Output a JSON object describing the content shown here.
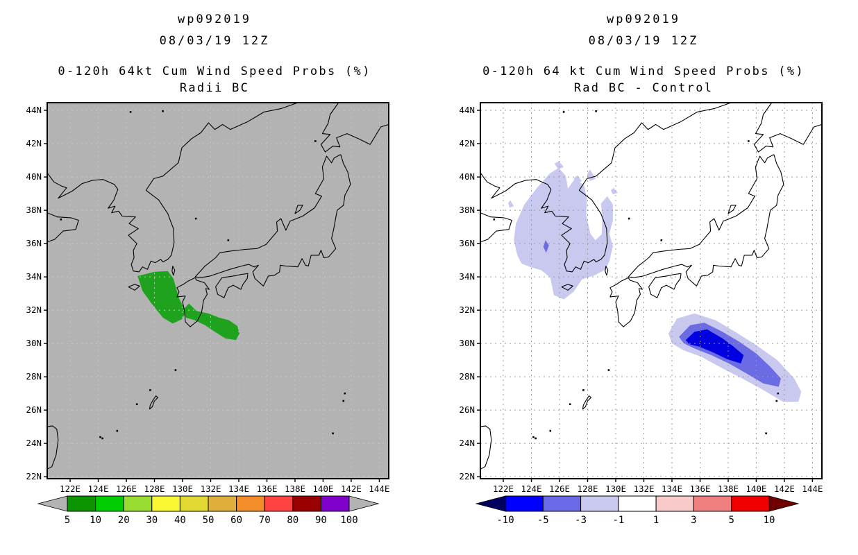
{
  "page": {
    "background": "#ffffff"
  },
  "chart_data": [
    {
      "type": "filled-contour-map",
      "title": "wp092019",
      "datetime": "08/03/19 12Z",
      "subtitle": "0-120h 64kt Cum Wind Speed Probs (%)",
      "variant": "Radii BC",
      "map_background": "#b3b3b3",
      "grid_color": "#c6c6c6",
      "coast_color": "#000000",
      "lon_range": [
        120.37,
        144.67
      ],
      "lat_range": [
        21.88,
        44.46
      ],
      "x_tick_labels": [
        "122E",
        "124E",
        "126E",
        "128E",
        "130E",
        "132E",
        "134E",
        "136E",
        "138E",
        "140E",
        "142E",
        "144E"
      ],
      "x_tick_values": [
        122,
        124,
        126,
        128,
        130,
        132,
        134,
        136,
        138,
        140,
        142,
        144
      ],
      "y_tick_labels": [
        "44N",
        "42N",
        "40N",
        "38N",
        "36N",
        "34N",
        "32N",
        "30N",
        "28N",
        "26N",
        "24N",
        "22N"
      ],
      "y_tick_values": [
        44,
        42,
        40,
        38,
        36,
        34,
        32,
        30,
        28,
        26,
        24,
        22
      ],
      "regions": [
        {
          "name": "prob-west-of-kyushu",
          "level": "5-10%",
          "color": "#1fa31f",
          "polygon": [
            [
              126.8,
              34.05
            ],
            [
              128.0,
              34.3
            ],
            [
              128.95,
              34.35
            ],
            [
              129.35,
              33.9
            ],
            [
              129.75,
              32.7
            ],
            [
              130.25,
              31.9
            ],
            [
              129.95,
              31.45
            ],
            [
              129.3,
              31.2
            ],
            [
              128.6,
              31.55
            ],
            [
              127.8,
              32.4
            ],
            [
              127.15,
              33.15
            ]
          ]
        },
        {
          "name": "prob-south-of-shikoku",
          "level": "5-10%",
          "color": "#1fa31f",
          "polygon": [
            [
              129.95,
              31.95
            ],
            [
              130.45,
              32.4
            ],
            [
              131.0,
              31.95
            ],
            [
              131.85,
              31.8
            ],
            [
              132.6,
              31.55
            ],
            [
              133.3,
              31.4
            ],
            [
              133.9,
              31.05
            ],
            [
              134.05,
              30.6
            ],
            [
              133.8,
              30.2
            ],
            [
              133.05,
              30.3
            ],
            [
              132.3,
              30.7
            ],
            [
              131.6,
              31.1
            ],
            [
              130.85,
              31.4
            ],
            [
              130.25,
              31.55
            ]
          ]
        }
      ],
      "colorbar": {
        "labels": [
          "5",
          "10",
          "20",
          "30",
          "40",
          "50",
          "60",
          "70",
          "80",
          "90",
          "100"
        ],
        "colors": [
          "#0b9400",
          "#00cd00",
          "#9add32",
          "#f8f832",
          "#e3d935",
          "#e0ae3a",
          "#f28d29",
          "#ff4242",
          "#9b0000",
          "#8000cc"
        ],
        "arrow_left_color": "#b3b3b3",
        "arrow_right_color": "#b3b3b3"
      }
    },
    {
      "type": "filled-contour-map-difference",
      "title": "wp092019",
      "datetime": "08/03/19 12Z",
      "subtitle": "0-120h 64 kt Cum Wind Speed Probs (%)",
      "variant": "Rad BC - Control",
      "map_background": "#ffffff",
      "grid_color": "#9a9a9a",
      "coast_color": "#000000",
      "lon_range": [
        120.37,
        144.67
      ],
      "lat_range": [
        21.88,
        44.46
      ],
      "x_tick_labels": [
        "122E",
        "124E",
        "126E",
        "128E",
        "130E",
        "132E",
        "134E",
        "136E",
        "138E",
        "140E",
        "142E",
        "144E"
      ],
      "x_tick_values": [
        122,
        124,
        126,
        128,
        130,
        132,
        134,
        136,
        138,
        140,
        142,
        144
      ],
      "y_tick_labels": [
        "44N",
        "42N",
        "40N",
        "38N",
        "36N",
        "34N",
        "32N",
        "30N",
        "28N",
        "26N",
        "24N",
        "22N"
      ],
      "y_tick_values": [
        44,
        42,
        40,
        38,
        36,
        34,
        32,
        30,
        28,
        26,
        24,
        22
      ],
      "regions": [
        {
          "name": "diff-korea-main",
          "level": "-1 to -3",
          "color": "#c9c9f0",
          "polygon": [
            [
              123.0,
              35.3
            ],
            [
              122.75,
              36.2
            ],
            [
              122.9,
              37.2
            ],
            [
              123.5,
              38.35
            ],
            [
              124.4,
              39.35
            ],
            [
              125.3,
              40.2
            ],
            [
              125.95,
              40.55
            ],
            [
              126.45,
              40.05
            ],
            [
              126.6,
              39.3
            ],
            [
              127.1,
              39.9
            ],
            [
              127.75,
              39.5
            ],
            [
              127.95,
              38.7
            ],
            [
              127.9,
              37.7
            ],
            [
              128.2,
              36.6
            ],
            [
              128.55,
              36.2
            ],
            [
              129.0,
              36.55
            ],
            [
              129.05,
              37.6
            ],
            [
              128.95,
              38.4
            ],
            [
              129.4,
              38.85
            ],
            [
              129.8,
              38.35
            ],
            [
              129.8,
              37.4
            ],
            [
              129.55,
              36.6
            ],
            [
              129.8,
              35.85
            ],
            [
              129.55,
              34.95
            ],
            [
              129.3,
              34.45
            ],
            [
              128.5,
              34.1
            ],
            [
              127.6,
              33.85
            ],
            [
              127.0,
              33.1
            ],
            [
              126.3,
              32.65
            ],
            [
              125.6,
              32.9
            ],
            [
              125.35,
              33.95
            ],
            [
              124.7,
              34.4
            ],
            [
              123.9,
              34.6
            ],
            [
              123.3,
              34.8
            ]
          ]
        },
        {
          "name": "diff-patch-1",
          "level": "-1 to -3",
          "color": "#c9c9f0",
          "polygon": [
            [
              125.95,
              40.95
            ],
            [
              126.3,
              40.6
            ],
            [
              125.9,
              40.45
            ],
            [
              125.65,
              40.8
            ]
          ]
        },
        {
          "name": "diff-patch-2",
          "level": "-1 to -3",
          "color": "#c9c9f0",
          "polygon": [
            [
              127.25,
              40.1
            ],
            [
              127.6,
              39.75
            ],
            [
              127.2,
              39.6
            ],
            [
              127.0,
              39.9
            ]
          ]
        },
        {
          "name": "diff-patch-3",
          "level": "-1 to -3",
          "color": "#c9c9f0",
          "polygon": [
            [
              128.15,
              40.45
            ],
            [
              128.6,
              39.9
            ],
            [
              128.15,
              39.75
            ],
            [
              127.95,
              40.15
            ]
          ]
        },
        {
          "name": "diff-patch-4",
          "level": "-1 to -3",
          "color": "#c9c9f0",
          "polygon": [
            [
              129.85,
              39.35
            ],
            [
              130.15,
              39.05
            ],
            [
              129.8,
              38.95
            ],
            [
              129.65,
              39.2
            ]
          ]
        },
        {
          "name": "diff-patch-5",
          "level": "-1 to -3",
          "color": "#c9c9f0",
          "polygon": [
            [
              122.5,
              38.6
            ],
            [
              122.75,
              38.25
            ],
            [
              122.45,
              38.15
            ],
            [
              122.35,
              38.45
            ]
          ]
        },
        {
          "name": "diff-korea-spot",
          "level": "-3 to -5",
          "color": "#6b6be4",
          "polygon": [
            [
              125.0,
              36.2
            ],
            [
              125.25,
              35.9
            ],
            [
              125.05,
              35.45
            ],
            [
              124.85,
              35.8
            ]
          ]
        },
        {
          "name": "diff-se-outer",
          "level": "-1 to -3",
          "color": "#c9c9f0",
          "polygon": [
            [
              133.75,
              30.6
            ],
            [
              134.35,
              31.5
            ],
            [
              135.6,
              31.8
            ],
            [
              137.1,
              31.4
            ],
            [
              138.5,
              30.7
            ],
            [
              140.0,
              29.9
            ],
            [
              141.5,
              29.0
            ],
            [
              142.7,
              27.9
            ],
            [
              143.2,
              27.1
            ],
            [
              143.0,
              26.5
            ],
            [
              141.9,
              26.5
            ],
            [
              140.5,
              27.2
            ],
            [
              139.0,
              27.9
            ],
            [
              137.6,
              28.5
            ],
            [
              136.1,
              29.2
            ],
            [
              134.8,
              29.6
            ],
            [
              134.0,
              30.0
            ]
          ]
        },
        {
          "name": "diff-se-middle",
          "level": "-3 to -5",
          "color": "#6b6be4",
          "polygon": [
            [
              134.5,
              30.4
            ],
            [
              135.3,
              31.1
            ],
            [
              136.3,
              31.25
            ],
            [
              137.6,
              30.7
            ],
            [
              138.8,
              30.1
            ],
            [
              140.0,
              29.4
            ],
            [
              141.0,
              28.6
            ],
            [
              141.75,
              27.9
            ],
            [
              141.6,
              27.4
            ],
            [
              140.5,
              27.6
            ],
            [
              139.3,
              28.2
            ],
            [
              138.05,
              28.8
            ],
            [
              136.8,
              29.3
            ],
            [
              135.6,
              29.7
            ],
            [
              134.85,
              30.0
            ]
          ]
        },
        {
          "name": "diff-se-inner",
          "level": "-5 to -10",
          "color": "#0000e0",
          "polygon": [
            [
              134.98,
              30.2
            ],
            [
              135.6,
              30.7
            ],
            [
              136.5,
              30.85
            ],
            [
              137.6,
              30.3
            ],
            [
              138.4,
              29.8
            ],
            [
              139.1,
              29.3
            ],
            [
              138.9,
              28.8
            ],
            [
              137.95,
              29.05
            ],
            [
              136.96,
              29.45
            ],
            [
              135.97,
              29.8
            ],
            [
              135.23,
              29.96
            ]
          ]
        }
      ],
      "colorbar": {
        "labels": [
          "-10",
          "-5",
          "-3",
          "-1",
          "1",
          "3",
          "5",
          "10"
        ],
        "colors": [
          "#0000ff",
          "#6a6ae8",
          "#c9c9f0",
          "#ffffff",
          "#f8caca",
          "#f08080",
          "#f00000"
        ],
        "arrow_left_color": "#000060",
        "arrow_right_color": "#700000"
      }
    }
  ]
}
